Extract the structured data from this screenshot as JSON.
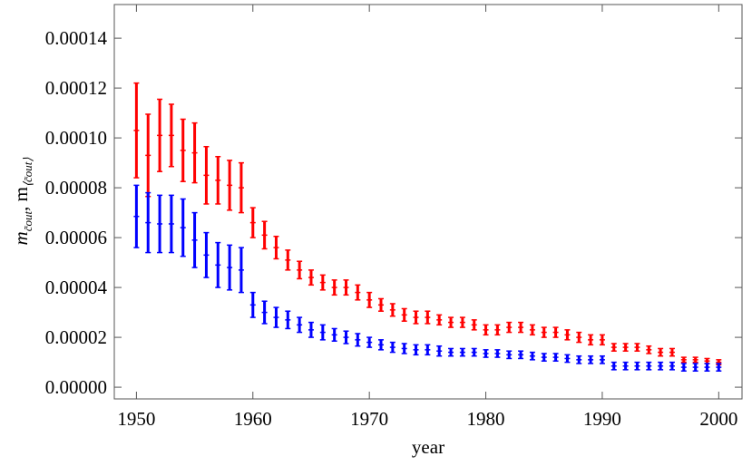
{
  "chart_data": {
    "type": "errorbar",
    "xlabel": "year",
    "ylabel": [
      "m",
      "c̃out",
      ", m",
      "⟨c̃out⟩"
    ],
    "x": [
      1950,
      1951,
      1952,
      1953,
      1954,
      1955,
      1956,
      1957,
      1958,
      1959,
      1960,
      1961,
      1962,
      1963,
      1964,
      1965,
      1966,
      1967,
      1968,
      1969,
      1970,
      1971,
      1972,
      1973,
      1974,
      1975,
      1976,
      1977,
      1978,
      1979,
      1980,
      1981,
      1982,
      1983,
      1984,
      1985,
      1986,
      1987,
      1988,
      1989,
      1990,
      1991,
      1992,
      1993,
      1994,
      1995,
      1996,
      1997,
      1998,
      1999,
      2000
    ],
    "series": [
      {
        "color": "#ff0000",
        "values": [
          0.000103,
          9.3e-05,
          0.000101,
          0.000101,
          9.5e-05,
          9.4e-05,
          8.5e-05,
          8.3e-05,
          8.1e-05,
          8e-05,
          6.6e-05,
          6.1e-05,
          5.6e-05,
          5.1e-05,
          4.7e-05,
          4.4e-05,
          4.2e-05,
          4e-05,
          4e-05,
          3.8e-05,
          3.5e-05,
          3.3e-05,
          3.1e-05,
          2.9e-05,
          2.8e-05,
          2.8e-05,
          2.7e-05,
          2.6e-05,
          2.6e-05,
          2.5e-05,
          2.3e-05,
          2.3e-05,
          2.4e-05,
          2.4e-05,
          2.3e-05,
          2.2e-05,
          2.2e-05,
          2.1e-05,
          2e-05,
          1.9e-05,
          1.9e-05,
          1.6e-05,
          1.6e-05,
          1.6e-05,
          1.5e-05,
          1.4e-05,
          1.4e-05,
          1.1e-05,
          1.1e-05,
          1.05e-05,
          1e-05
        ],
        "errors": [
          1.9e-05,
          1.65e-05,
          1.45e-05,
          1.25e-05,
          1.25e-05,
          1.2e-05,
          1.15e-05,
          9.5e-06,
          1e-05,
          1e-05,
          6e-06,
          5.5e-06,
          4.5e-06,
          4e-06,
          3.5e-06,
          3e-06,
          3e-06,
          3e-06,
          3e-06,
          3e-06,
          3e-06,
          2.5e-06,
          2.5e-06,
          2.5e-06,
          2.5e-06,
          2.5e-06,
          2e-06,
          2e-06,
          2e-06,
          2e-06,
          2e-06,
          2e-06,
          2e-06,
          2e-06,
          2e-06,
          2e-06,
          2e-06,
          2e-06,
          2e-06,
          2e-06,
          2e-06,
          1.5e-06,
          1.5e-06,
          1.5e-06,
          1.5e-06,
          1.5e-06,
          1.5e-06,
          1e-06,
          1e-06,
          1e-06,
          1e-06
        ]
      },
      {
        "color": "#0000ff",
        "values": [
          6.85e-05,
          6.6e-05,
          6.55e-05,
          6.55e-05,
          6.4e-05,
          5.9e-05,
          5.3e-05,
          4.9e-05,
          4.8e-05,
          4.7e-05,
          3.3e-05,
          3e-05,
          2.8e-05,
          2.7e-05,
          2.5e-05,
          2.3e-05,
          2.2e-05,
          2.1e-05,
          2e-05,
          1.9e-05,
          1.8e-05,
          1.7e-05,
          1.6e-05,
          1.55e-05,
          1.5e-05,
          1.5e-05,
          1.45e-05,
          1.4e-05,
          1.4e-05,
          1.4e-05,
          1.35e-05,
          1.35e-05,
          1.3e-05,
          1.3e-05,
          1.25e-05,
          1.2e-05,
          1.2e-05,
          1.15e-05,
          1.1e-05,
          1.1e-05,
          1.1e-05,
          8.5e-06,
          8.5e-06,
          8.5e-06,
          8.5e-06,
          8.5e-06,
          8.5e-06,
          8e-06,
          8e-06,
          8e-06,
          8e-06
        ],
        "errors": [
          1.25e-05,
          1.2e-05,
          1.15e-05,
          1.15e-05,
          1.15e-05,
          1.1e-05,
          9e-06,
          9e-06,
          9e-06,
          9e-06,
          5e-06,
          4.5e-06,
          4e-06,
          3.5e-06,
          3e-06,
          3e-06,
          3e-06,
          2.5e-06,
          2.5e-06,
          2.5e-06,
          2e-06,
          2e-06,
          2e-06,
          2e-06,
          2e-06,
          2e-06,
          2e-06,
          1.5e-06,
          1.5e-06,
          1.5e-06,
          1.5e-06,
          1.5e-06,
          1.5e-06,
          1.5e-06,
          1.5e-06,
          1.5e-06,
          1.5e-06,
          1.5e-06,
          1.5e-06,
          1.5e-06,
          1.5e-06,
          1.5e-06,
          1.5e-06,
          1.5e-06,
          1.5e-06,
          1.5e-06,
          1.5e-06,
          1.5e-06,
          1.5e-06,
          1.5e-06,
          1.5e-06
        ]
      }
    ],
    "xlim": [
      1948.1,
      2002
    ],
    "ylim": [
      -4.7e-06,
      0.0001535
    ],
    "xticks": [
      1950,
      1960,
      1970,
      1980,
      1990,
      2000
    ],
    "yticks": [
      {
        "value": 0,
        "label": "0.00000"
      },
      2e-05,
      4e-05,
      6e-05,
      8e-05,
      {
        "value": 0.0001,
        "label": "0.00010"
      },
      0.00012,
      0.00014
    ]
  }
}
